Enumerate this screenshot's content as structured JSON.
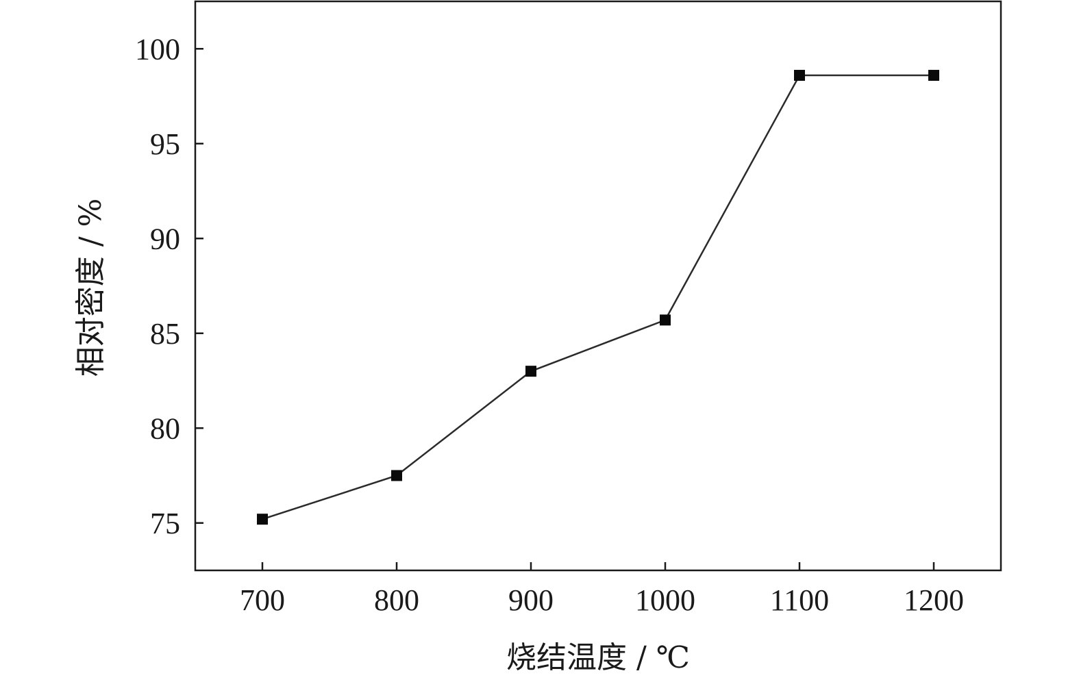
{
  "chart_data": {
    "type": "line",
    "title": "",
    "xlabel": "烧结温度 / ℃",
    "ylabel": "相对密度 / %",
    "x": [
      700,
      800,
      900,
      1000,
      1100,
      1200
    ],
    "series": [
      {
        "values": [
          75.2,
          77.5,
          83.0,
          85.7,
          98.6,
          98.6
        ]
      }
    ],
    "xlim": [
      650,
      1250
    ],
    "ylim": [
      72.5,
      102.5
    ],
    "xticks": [
      700,
      800,
      900,
      1000,
      1100,
      1200
    ],
    "yticks": [
      75,
      80,
      85,
      90,
      95,
      100
    ],
    "xtick_labels": [
      "700",
      "800",
      "900",
      "1000",
      "1100",
      "1200"
    ],
    "ytick_labels": [
      "75",
      "80",
      "85",
      "90",
      "95",
      "100"
    ],
    "grid": false,
    "legend": "none",
    "marker": "square",
    "colors": {
      "line": "#2b2b2b",
      "marker": "#0a0a0a",
      "axis": "#1a1a1a"
    }
  }
}
